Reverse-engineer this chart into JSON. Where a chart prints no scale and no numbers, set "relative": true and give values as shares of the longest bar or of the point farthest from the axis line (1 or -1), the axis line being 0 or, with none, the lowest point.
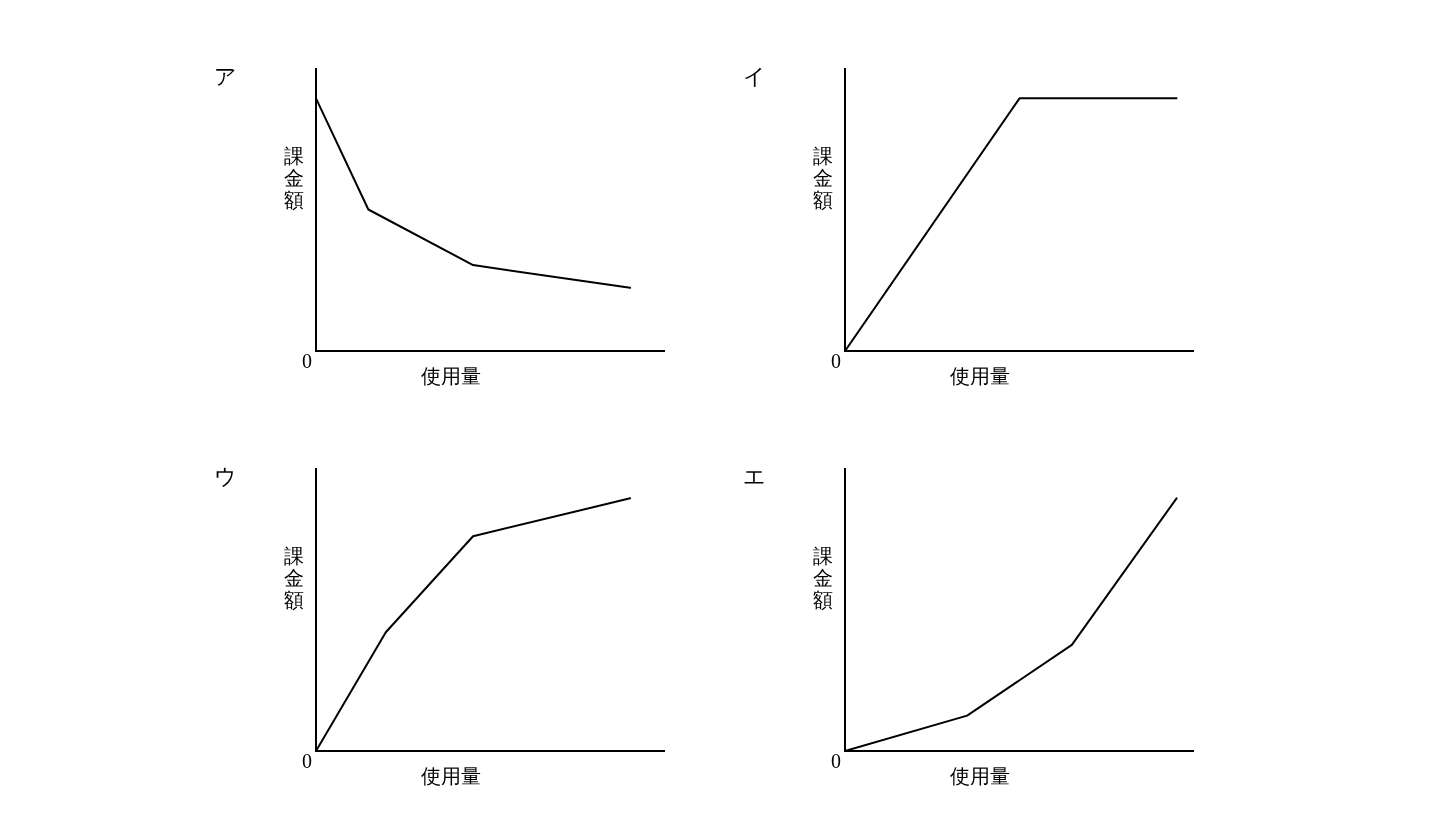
{
  "chart_data": [
    {
      "type": "line",
      "title": "ア",
      "xlabel": "使用量",
      "ylabel": "課金額",
      "relative": true,
      "marker": "none",
      "annotations": [
        "0"
      ],
      "categories": [
        null,
        null,
        null,
        null,
        null,
        null,
        null,
        null,
        null,
        null,
        null,
        null,
        null,
        null,
        null,
        null,
        null,
        null,
        null,
        null,
        null
      ],
      "color": "#000000",
      "values": [
        1,
        null,
        null,
        0.56,
        null,
        null,
        null,
        null,
        null,
        0.34,
        null,
        null,
        null,
        null,
        null,
        null,
        null,
        null,
        0.25,
        null,
        null
      ]
    },
    {
      "type": "line",
      "title": "イ",
      "xlabel": "使用量",
      "ylabel": "課金額",
      "relative": true,
      "marker": "none",
      "annotations": [
        "0"
      ],
      "categories": [
        null,
        null,
        null,
        null,
        null,
        null,
        null,
        null,
        null,
        null,
        null,
        null,
        null,
        null,
        null,
        null,
        null,
        null,
        null,
        null,
        null
      ],
      "color": "#000000",
      "values": [
        0,
        null,
        null,
        null,
        null,
        null,
        null,
        null,
        null,
        null,
        1,
        null,
        null,
        null,
        null,
        null,
        null,
        null,
        null,
        1,
        null
      ]
    },
    {
      "type": "line",
      "title": "ウ",
      "xlabel": "使用量",
      "ylabel": "課金額",
      "relative": true,
      "marker": "none",
      "annotations": [
        "0"
      ],
      "categories": [
        null,
        null,
        null,
        null,
        null,
        null,
        null,
        null,
        null,
        null,
        null,
        null,
        null,
        null,
        null,
        null,
        null,
        null,
        null,
        null,
        null
      ],
      "color": "#000000",
      "values": [
        0,
        null,
        null,
        null,
        0.47,
        null,
        null,
        null,
        null,
        0.85,
        null,
        null,
        null,
        null,
        null,
        null,
        null,
        null,
        1,
        null,
        null
      ]
    },
    {
      "type": "line",
      "title": "エ",
      "xlabel": "使用量",
      "ylabel": "課金額",
      "relative": true,
      "marker": "none",
      "annotations": [
        "0"
      ],
      "categories": [
        null,
        null,
        null,
        null,
        null,
        null,
        null,
        null,
        null,
        null,
        null,
        null,
        null,
        null,
        null,
        null,
        null,
        null,
        null,
        null,
        null
      ],
      "color": "#000000",
      "values": [
        0,
        null,
        null,
        null,
        null,
        null,
        null,
        0.14,
        null,
        null,
        null,
        null,
        null,
        0.42,
        null,
        null,
        null,
        null,
        null,
        1,
        null
      ]
    }
  ]
}
